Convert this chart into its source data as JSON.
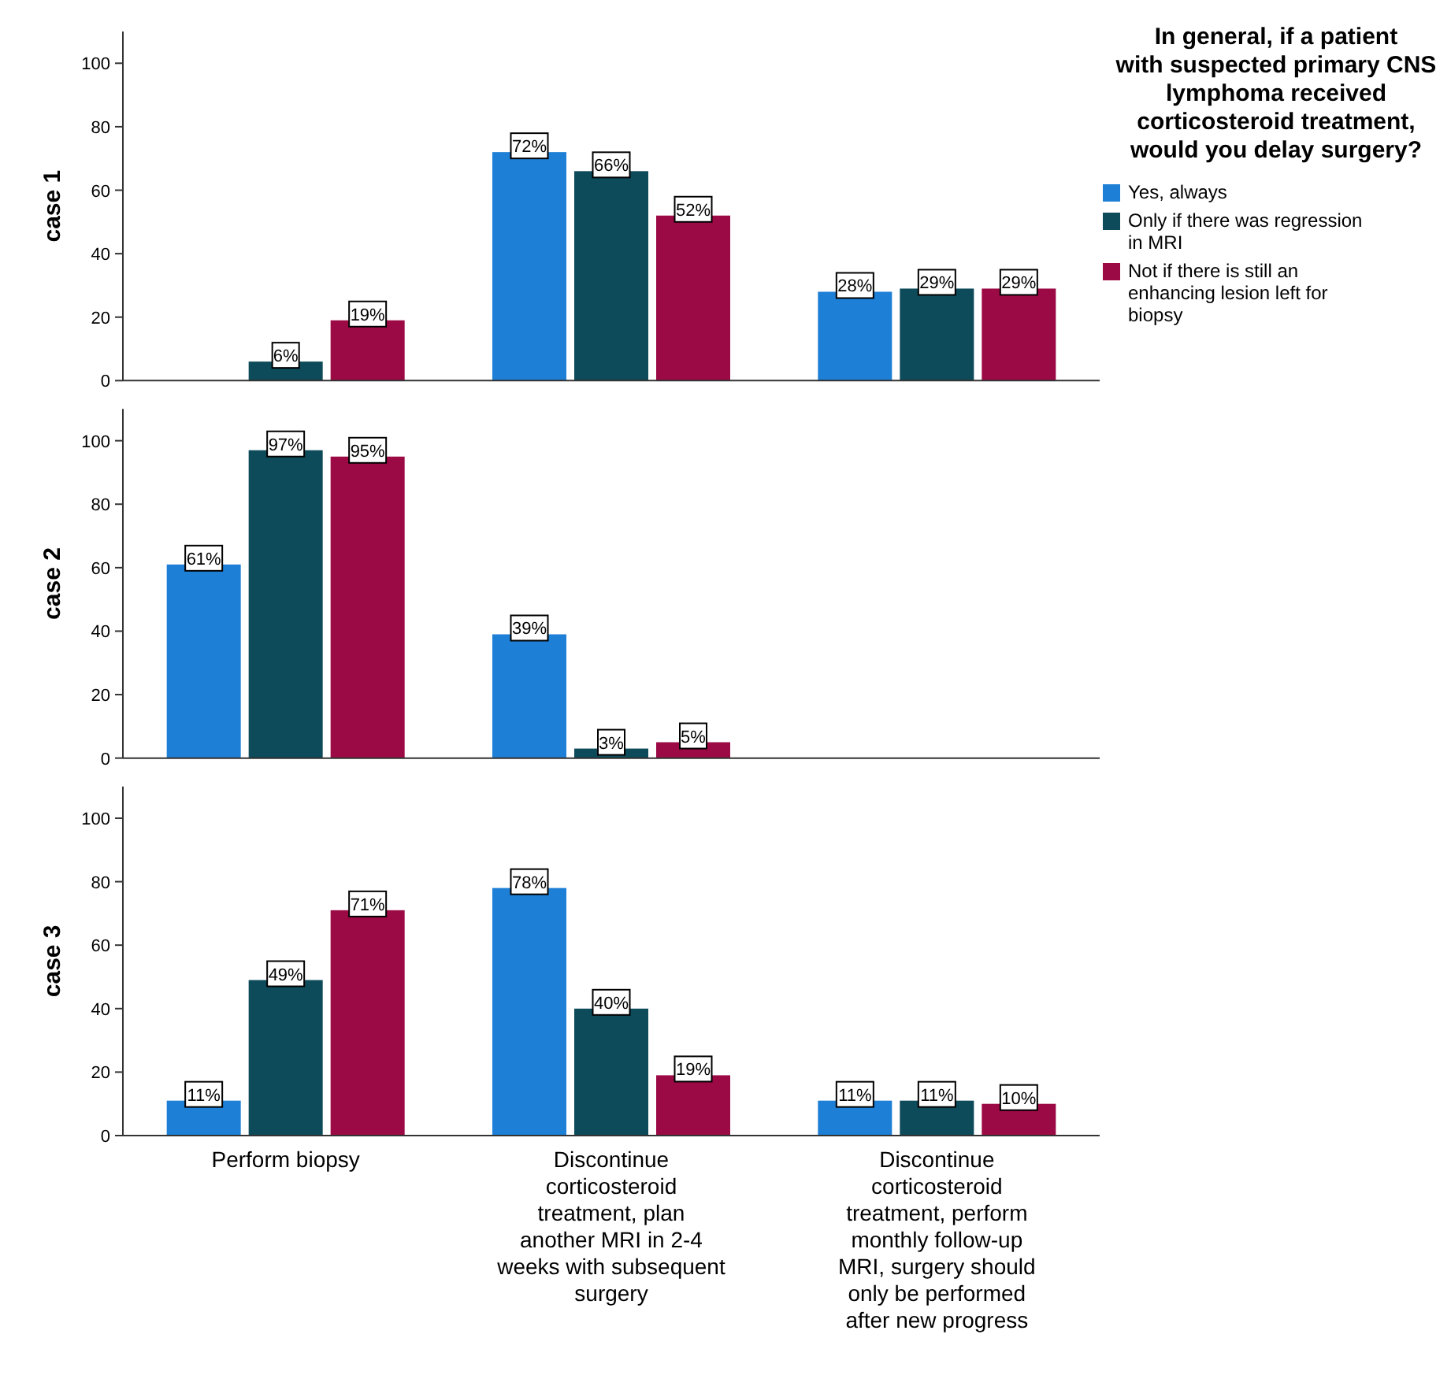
{
  "chart_data": [
    {
      "type": "bar",
      "ylabel": "case 1",
      "categories": [
        null,
        null,
        null
      ],
      "ylim": [
        0,
        110
      ],
      "yticks": [
        0,
        20,
        40,
        60,
        80,
        100
      ],
      "tick_labels": "y",
      "legend": "right",
      "legend_title": "In general, if a patient with suspected primary CNS lymphoma received corticosteroid treatment, would you delay surgery?",
      "series": [
        {
          "name": "Yes, always",
          "color": "#1e7fd6",
          "values": [
            null,
            72,
            28
          ],
          "value_labels": [
            null,
            "72%",
            "28%"
          ]
        },
        {
          "name": "Only if there was regression in MRI",
          "color": "#0d4a5a",
          "values": [
            6,
            66,
            29
          ],
          "value_labels": [
            "6%",
            "66%",
            "29%"
          ]
        },
        {
          "name": "Not if there is still an enhancing lesion left for biopsy",
          "color": "#9c0a45",
          "values": [
            19,
            52,
            29
          ],
          "value_labels": [
            "19%",
            "52%",
            "29%"
          ]
        }
      ]
    },
    {
      "type": "bar",
      "ylabel": "case 2",
      "categories": [
        null,
        null,
        null
      ],
      "ylim": [
        0,
        110
      ],
      "yticks": [
        0,
        20,
        40,
        60,
        80,
        100
      ],
      "tick_labels": "y",
      "series": [
        {
          "color": "#1e7fd6",
          "values": [
            61,
            39,
            null
          ],
          "value_labels": [
            "61%",
            "39%",
            null
          ]
        },
        {
          "color": "#0d4a5a",
          "values": [
            97,
            3,
            null
          ],
          "value_labels": [
            "97%",
            "3%",
            null
          ]
        },
        {
          "color": "#9c0a45",
          "values": [
            95,
            5,
            null
          ],
          "value_labels": [
            "95%",
            "5%",
            null
          ]
        }
      ]
    },
    {
      "type": "bar",
      "ylabel": "case 3",
      "categories": [
        "Perform biopsy",
        "Discontinue corticosteroid treatment, plan another MRI in 2-4 weeks with subsequent surgery",
        "Discontinue corticosteroid treatment, perform monthly follow-up MRI, surgery should only be performed after new progress"
      ],
      "ylim": [
        0,
        110
      ],
      "yticks": [
        0,
        20,
        40,
        60,
        80,
        100
      ],
      "series": [
        {
          "color": "#1e7fd6",
          "values": [
            11,
            78,
            11
          ],
          "value_labels": [
            "11%",
            "78%",
            "11%"
          ]
        },
        {
          "color": "#0d4a5a",
          "values": [
            49,
            40,
            11
          ],
          "value_labels": [
            "49%",
            "40%",
            "11%"
          ]
        },
        {
          "color": "#9c0a45",
          "values": [
            71,
            19,
            10
          ],
          "value_labels": [
            "71%",
            "19%",
            "10%"
          ]
        }
      ]
    }
  ]
}
